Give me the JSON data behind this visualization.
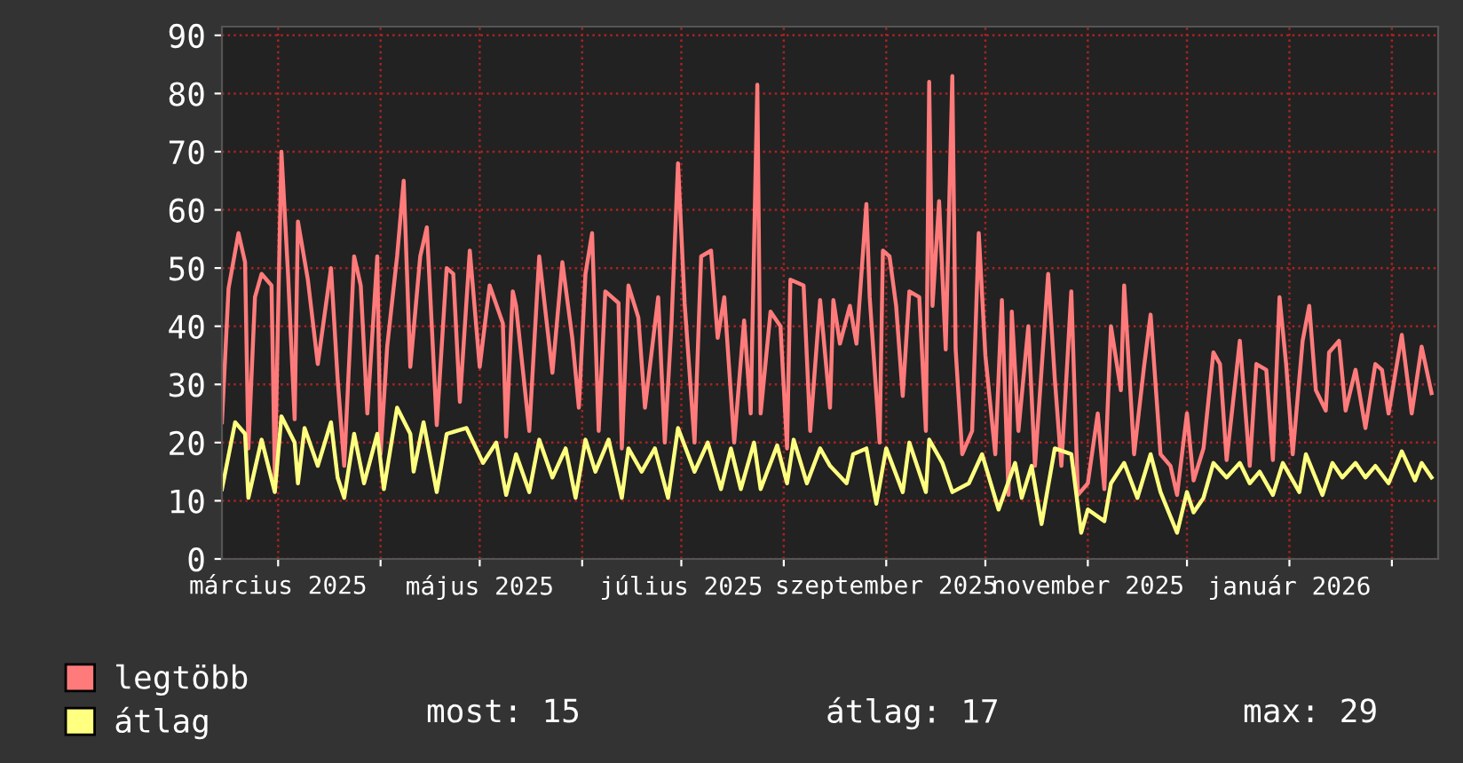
{
  "chart_data": {
    "type": "line",
    "line_style": "solid",
    "marker": "none",
    "grid": true,
    "legend": "bottom left",
    "xlim": [
      "2025-02-12",
      "2026-02-15"
    ],
    "ylim": [
      0,
      91.5
    ],
    "yticks": [
      0,
      10,
      20,
      30,
      40,
      50,
      60,
      70,
      80,
      90
    ],
    "xticks": [
      {
        "value": "2025-03-01",
        "label": "március 2025"
      },
      {
        "value": "2025-04-01",
        "label": null
      },
      {
        "value": "2025-05-01",
        "label": "május 2025"
      },
      {
        "value": "2025-06-01",
        "label": null
      },
      {
        "value": "2025-07-01",
        "label": "július 2025"
      },
      {
        "value": "2025-08-01",
        "label": null
      },
      {
        "value": "2025-09-01",
        "label": "szeptember 2025"
      },
      {
        "value": "2025-10-01",
        "label": null
      },
      {
        "value": "2025-11-01",
        "label": "november 2025"
      },
      {
        "value": "2025-12-01",
        "label": null
      },
      {
        "value": "2026-01-01",
        "label": "január 2026"
      },
      {
        "value": "2026-02-01",
        "label": null
      }
    ],
    "annotations": [
      "most: 15",
      "átlag: 17",
      "max: 29"
    ],
    "series": [
      {
        "name": "legtöbb",
        "color": "#ff7b7b",
        "x": [
          "2025-02-12",
          "2025-02-14",
          "2025-02-17",
          "2025-02-19",
          "2025-02-20",
          "2025-02-22",
          "2025-02-24",
          "2025-02-27",
          "2025-02-28",
          "2025-03-02",
          "2025-03-04",
          "2025-03-06",
          "2025-03-07",
          "2025-03-10",
          "2025-03-13",
          "2025-03-17",
          "2025-03-19",
          "2025-03-21",
          "2025-03-24",
          "2025-03-26",
          "2025-03-28",
          "2025-03-31",
          "2025-04-01",
          "2025-04-03",
          "2025-04-06",
          "2025-04-08",
          "2025-04-10",
          "2025-04-13",
          "2025-04-15",
          "2025-04-18",
          "2025-04-21",
          "2025-04-23",
          "2025-04-25",
          "2025-04-28",
          "2025-05-01",
          "2025-05-04",
          "2025-05-08",
          "2025-05-09",
          "2025-05-11",
          "2025-05-12",
          "2025-05-16",
          "2025-05-19",
          "2025-05-23",
          "2025-05-26",
          "2025-05-29",
          "2025-05-31",
          "2025-06-02",
          "2025-06-04",
          "2025-06-06",
          "2025-06-08",
          "2025-06-12",
          "2025-06-13",
          "2025-06-15",
          "2025-06-18",
          "2025-06-20",
          "2025-06-24",
          "2025-06-26",
          "2025-06-28",
          "2025-06-30",
          "2025-07-02",
          "2025-07-05",
          "2025-07-07",
          "2025-07-10",
          "2025-07-12",
          "2025-07-14",
          "2025-07-17",
          "2025-07-20",
          "2025-07-22",
          "2025-07-24",
          "2025-07-25",
          "2025-07-28",
          "2025-07-31",
          "2025-08-02",
          "2025-08-03",
          "2025-08-07",
          "2025-08-09",
          "2025-08-12",
          "2025-08-15",
          "2025-08-16",
          "2025-08-18",
          "2025-08-21",
          "2025-08-23",
          "2025-08-26",
          "2025-08-27",
          "2025-08-30",
          "2025-08-31",
          "2025-09-02",
          "2025-09-04",
          "2025-09-06",
          "2025-09-08",
          "2025-09-11",
          "2025-09-13",
          "2025-09-14",
          "2025-09-15",
          "2025-09-17",
          "2025-09-19",
          "2025-09-21",
          "2025-09-22",
          "2025-09-24",
          "2025-09-27",
          "2025-09-29",
          "2025-10-01",
          "2025-10-04",
          "2025-10-06",
          "2025-10-08",
          "2025-10-09",
          "2025-10-11",
          "2025-10-14",
          "2025-10-16",
          "2025-10-20",
          "2025-10-22",
          "2025-10-24",
          "2025-10-27",
          "2025-10-29",
          "2025-11-01",
          "2025-11-04",
          "2025-11-06",
          "2025-11-08",
          "2025-11-11",
          "2025-11-12",
          "2025-11-15",
          "2025-11-18",
          "2025-11-20",
          "2025-11-23",
          "2025-11-26",
          "2025-11-28",
          "2025-12-01",
          "2025-12-03",
          "2025-12-06",
          "2025-12-09",
          "2025-12-11",
          "2025-12-13",
          "2025-12-17",
          "2025-12-20",
          "2025-12-22",
          "2025-12-25",
          "2025-12-27",
          "2025-12-29",
          "2025-12-31",
          "2026-01-02",
          "2026-01-05",
          "2026-01-07",
          "2026-01-09",
          "2026-01-12",
          "2026-01-13",
          "2026-01-16",
          "2026-01-18",
          "2026-01-21",
          "2026-01-24",
          "2026-01-27",
          "2026-01-29",
          "2026-01-31",
          "2026-02-04",
          "2026-02-07",
          "2026-02-10",
          "2026-02-13"
        ],
        "values": [
          23.5,
          46.5,
          56,
          51,
          19,
          45,
          49,
          47,
          14,
          70,
          49,
          24,
          58,
          48,
          33.5,
          50,
          31,
          16,
          52,
          47,
          25,
          52,
          18,
          36.5,
          52,
          65,
          33,
          52,
          57,
          23,
          50,
          49,
          27,
          53,
          33,
          47,
          40.5,
          21,
          46,
          43.5,
          22,
          52,
          32,
          51,
          38,
          26,
          49,
          56,
          22,
          46,
          44,
          19,
          47,
          41.5,
          26,
          45,
          20,
          40,
          68,
          44,
          20,
          52,
          53,
          38,
          45,
          20,
          41,
          25,
          81.5,
          25,
          42.5,
          40,
          19,
          48,
          47,
          22,
          44.5,
          26,
          44.5,
          37,
          43.5,
          37,
          61,
          45,
          20,
          53,
          52,
          43.5,
          28,
          46,
          45,
          22,
          82,
          43.5,
          61.5,
          36,
          83,
          36,
          18,
          22,
          56,
          35,
          18,
          44.5,
          11,
          42.5,
          22,
          40,
          16,
          49,
          31,
          16,
          46,
          11,
          13,
          25,
          12,
          40,
          29,
          47,
          18,
          33,
          42,
          18,
          16,
          11,
          25,
          13.5,
          19,
          35.5,
          33.5,
          17,
          37.5,
          16,
          33.5,
          32.5,
          17,
          45,
          33.5,
          18,
          37.5,
          43.5,
          29,
          25.5,
          35.5,
          37.5,
          25.5,
          32.5,
          22.5,
          33.5,
          32.5,
          25,
          38.5,
          25,
          36.5,
          28.5
        ]
      },
      {
        "name": "átlag",
        "color": "#ffff80",
        "x": [
          "2025-02-12",
          "2025-02-16",
          "2025-02-19",
          "2025-02-20",
          "2025-02-24",
          "2025-02-28",
          "2025-03-02",
          "2025-03-06",
          "2025-03-07",
          "2025-03-09",
          "2025-03-13",
          "2025-03-17",
          "2025-03-19",
          "2025-03-21",
          "2025-03-24",
          "2025-03-27",
          "2025-03-31",
          "2025-04-02",
          "2025-04-06",
          "2025-04-10",
          "2025-04-11",
          "2025-04-14",
          "2025-04-18",
          "2025-04-21",
          "2025-04-27",
          "2025-05-02",
          "2025-05-06",
          "2025-05-09",
          "2025-05-12",
          "2025-05-16",
          "2025-05-19",
          "2025-05-23",
          "2025-05-27",
          "2025-05-30",
          "2025-06-02",
          "2025-06-05",
          "2025-06-09",
          "2025-06-13",
          "2025-06-15",
          "2025-06-19",
          "2025-06-23",
          "2025-06-27",
          "2025-06-30",
          "2025-07-05",
          "2025-07-09",
          "2025-07-13",
          "2025-07-16",
          "2025-07-19",
          "2025-07-23",
          "2025-07-25",
          "2025-07-30",
          "2025-08-02",
          "2025-08-04",
          "2025-08-08",
          "2025-08-12",
          "2025-08-15",
          "2025-08-20",
          "2025-08-22",
          "2025-08-26",
          "2025-08-29",
          "2025-09-01",
          "2025-09-06",
          "2025-09-08",
          "2025-09-13",
          "2025-09-14",
          "2025-09-18",
          "2025-09-21",
          "2025-09-26",
          "2025-09-30",
          "2025-10-05",
          "2025-10-10",
          "2025-10-12",
          "2025-10-15",
          "2025-10-18",
          "2025-10-22",
          "2025-10-27",
          "2025-10-30",
          "2025-11-01",
          "2025-11-06",
          "2025-11-08",
          "2025-11-12",
          "2025-11-16",
          "2025-11-20",
          "2025-11-23",
          "2025-11-28",
          "2025-12-01",
          "2025-12-03",
          "2025-12-06",
          "2025-12-09",
          "2025-12-13",
          "2025-12-17",
          "2025-12-20",
          "2025-12-23",
          "2025-12-27",
          "2025-12-30",
          "2026-01-04",
          "2026-01-06",
          "2026-01-11",
          "2026-01-14",
          "2026-01-17",
          "2026-01-21",
          "2026-01-24",
          "2026-01-27",
          "2026-01-31",
          "2026-02-04",
          "2026-02-08",
          "2026-02-10",
          "2026-02-13"
        ],
        "values": [
          12,
          23.5,
          21.5,
          10.5,
          20.5,
          11.5,
          24.5,
          20,
          13,
          22.5,
          16,
          23.5,
          14,
          10.5,
          21.5,
          13,
          21.5,
          12,
          26,
          21.5,
          15,
          23.5,
          11.5,
          21.5,
          22.5,
          16.5,
          20,
          11,
          18,
          11.5,
          20.5,
          14,
          19,
          10.5,
          20.5,
          15,
          20.5,
          10.5,
          19,
          15,
          19,
          10.5,
          22.5,
          15,
          20,
          12,
          19,
          12,
          20,
          12,
          19.5,
          13,
          20.5,
          13,
          19,
          16,
          13,
          18,
          19,
          9.5,
          19,
          11.5,
          20,
          11.5,
          20.5,
          16.5,
          11.5,
          13,
          18,
          8.5,
          16.5,
          10.5,
          16,
          6,
          19,
          18,
          4.5,
          8.5,
          6.5,
          13,
          16.5,
          10.5,
          18,
          11.5,
          4.5,
          11.5,
          8,
          10.5,
          16.5,
          14,
          16.5,
          13,
          15,
          11,
          16.5,
          11.5,
          18,
          11,
          16.5,
          14,
          16.5,
          14,
          16,
          13,
          18.5,
          13.5,
          16.5,
          14
        ]
      }
    ]
  }
}
